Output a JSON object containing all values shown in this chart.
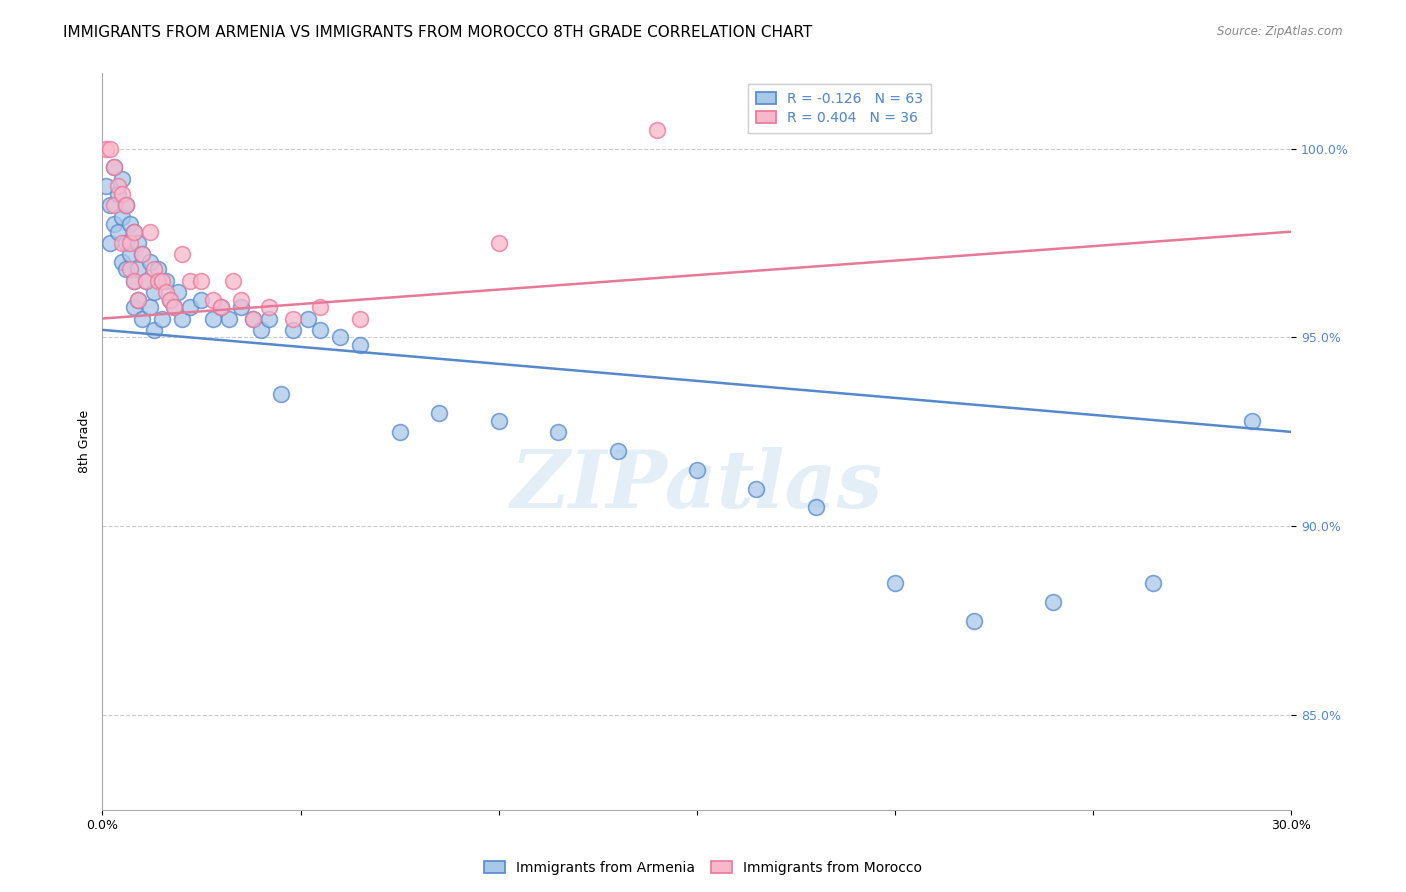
{
  "title": "IMMIGRANTS FROM ARMENIA VS IMMIGRANTS FROM MOROCCO 8TH GRADE CORRELATION CHART",
  "source": "Source: ZipAtlas.com",
  "ylabel": "8th Grade",
  "yticks": [
    85.0,
    90.0,
    95.0,
    100.0
  ],
  "xlim": [
    0.0,
    0.3
  ],
  "ylim": [
    82.5,
    102.0
  ],
  "legend_blue_label": "R = -0.126   N = 63",
  "legend_pink_label": "R = 0.404   N = 36",
  "legend_label_armenia": "Immigrants from Armenia",
  "legend_label_morocco": "Immigrants from Morocco",
  "blue_color": "#a8c8e8",
  "blue_line_color": "#5588cc",
  "pink_color": "#f8b8cc",
  "pink_line_color": "#e87898",
  "watermark": "ZIPatlas",
  "blue_scatter_x": [
    0.001,
    0.002,
    0.002,
    0.003,
    0.003,
    0.004,
    0.004,
    0.005,
    0.005,
    0.005,
    0.006,
    0.006,
    0.006,
    0.007,
    0.007,
    0.008,
    0.008,
    0.008,
    0.009,
    0.009,
    0.009,
    0.01,
    0.01,
    0.011,
    0.012,
    0.012,
    0.013,
    0.013,
    0.014,
    0.015,
    0.016,
    0.017,
    0.018,
    0.019,
    0.02,
    0.022,
    0.025,
    0.028,
    0.03,
    0.032,
    0.035,
    0.038,
    0.04,
    0.042,
    0.045,
    0.048,
    0.052,
    0.055,
    0.06,
    0.065,
    0.075,
    0.085,
    0.1,
    0.115,
    0.13,
    0.15,
    0.165,
    0.18,
    0.2,
    0.22,
    0.24,
    0.265,
    0.29
  ],
  "blue_scatter_y": [
    99.0,
    98.5,
    97.5,
    99.5,
    98.0,
    98.8,
    97.8,
    99.2,
    98.2,
    97.0,
    98.5,
    97.5,
    96.8,
    98.0,
    97.2,
    97.8,
    96.5,
    95.8,
    97.5,
    96.8,
    96.0,
    97.2,
    95.5,
    96.5,
    97.0,
    95.8,
    96.2,
    95.2,
    96.8,
    95.5,
    96.5,
    96.0,
    95.8,
    96.2,
    95.5,
    95.8,
    96.0,
    95.5,
    95.8,
    95.5,
    95.8,
    95.5,
    95.2,
    95.5,
    93.5,
    95.2,
    95.5,
    95.2,
    95.0,
    94.8,
    92.5,
    93.0,
    92.8,
    92.5,
    92.0,
    91.5,
    91.0,
    90.5,
    88.5,
    87.5,
    88.0,
    88.5,
    92.8
  ],
  "pink_scatter_x": [
    0.001,
    0.002,
    0.003,
    0.003,
    0.004,
    0.005,
    0.005,
    0.006,
    0.007,
    0.007,
    0.008,
    0.008,
    0.009,
    0.01,
    0.011,
    0.012,
    0.013,
    0.014,
    0.015,
    0.016,
    0.017,
    0.018,
    0.02,
    0.022,
    0.025,
    0.028,
    0.03,
    0.033,
    0.035,
    0.038,
    0.042,
    0.048,
    0.055,
    0.065,
    0.1,
    0.14
  ],
  "pink_scatter_y": [
    100.0,
    100.0,
    99.5,
    98.5,
    99.0,
    98.8,
    97.5,
    98.5,
    97.5,
    96.8,
    97.8,
    96.5,
    96.0,
    97.2,
    96.5,
    97.8,
    96.8,
    96.5,
    96.5,
    96.2,
    96.0,
    95.8,
    97.2,
    96.5,
    96.5,
    96.0,
    95.8,
    96.5,
    96.0,
    95.5,
    95.8,
    95.5,
    95.8,
    95.5,
    97.5,
    100.5
  ],
  "blue_line_x0": 0.0,
  "blue_line_y0": 95.2,
  "blue_line_x1": 0.3,
  "blue_line_y1": 92.5,
  "pink_line_x0": 0.0,
  "pink_line_y0": 95.5,
  "pink_line_x1": 0.3,
  "pink_line_y1": 97.8,
  "title_fontsize": 11,
  "axis_label_fontsize": 9,
  "tick_fontsize": 9,
  "legend_fontsize": 10
}
